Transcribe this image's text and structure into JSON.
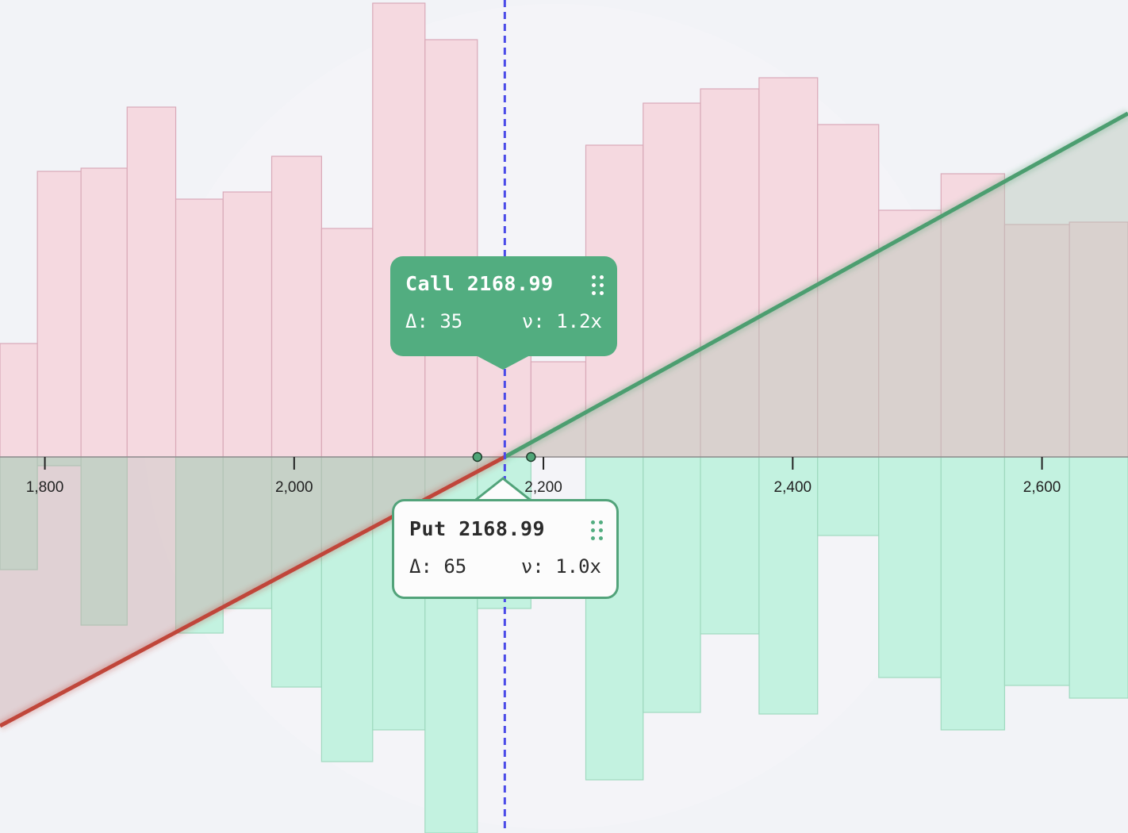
{
  "chart_data": {
    "type": "bar",
    "xlim": [
      1764,
      2669
    ],
    "ylim": [
      -474,
      576
    ],
    "grid": false,
    "x_ticks": [
      1800,
      2000,
      2200,
      2400,
      2600
    ],
    "x_tick_labels": [
      "1,800",
      "2,000",
      "2,200",
      "2,400",
      "2,600"
    ],
    "bins": [
      [
        1764,
        1794
      ],
      [
        1794,
        1829
      ],
      [
        1829,
        1866
      ],
      [
        1866,
        1905
      ],
      [
        1905,
        1943
      ],
      [
        1943,
        1982
      ],
      [
        1982,
        2022
      ],
      [
        2022,
        2063
      ],
      [
        2063,
        2105
      ],
      [
        2105,
        2147
      ],
      [
        2147,
        2190
      ],
      [
        2190,
        2234
      ],
      [
        2234,
        2280
      ],
      [
        2280,
        2326
      ],
      [
        2326,
        2373
      ],
      [
        2373,
        2420
      ],
      [
        2420,
        2469
      ],
      [
        2469,
        2519
      ],
      [
        2519,
        2570
      ],
      [
        2570,
        2622
      ],
      [
        2622,
        2669
      ]
    ],
    "series": [
      {
        "values": [
          143,
          360,
          364,
          441,
          325,
          334,
          379,
          288,
          572,
          526,
          130,
          120,
          393,
          446,
          464,
          478,
          419,
          311,
          357,
          293,
          296
        ],
        "color": "#f5d9e0"
      },
      {
        "values": [
          -142,
          -11,
          -212,
          0,
          -222,
          -191,
          -290,
          -384,
          -344,
          -480,
          -191,
          0,
          -407,
          -322,
          -223,
          -324,
          -99,
          -278,
          -344,
          -288,
          -304
        ],
        "color": "#c3f2e0"
      }
    ],
    "payoff_lines": [
      {
        "points": [
          [
            1764,
            -339
          ],
          [
            2169,
            0
          ]
        ],
        "color": "#c0463a"
      },
      {
        "points": [
          [
            2169,
            0
          ],
          [
            2669,
            433
          ]
        ],
        "color": "#4c9e70"
      }
    ],
    "strike": 2168.99,
    "strike_line_color": "#4a4ae8",
    "markers": [
      2147,
      2190
    ]
  },
  "tooltips": {
    "call": {
      "title": "Call 2168.99",
      "delta": "Δ: 35",
      "nu": "ν: 1.2x",
      "color": "#52ad80"
    },
    "put": {
      "title": "Put 2168.99",
      "delta": "Δ: 65",
      "nu": "ν: 1.0x",
      "color": "#52a37a"
    }
  }
}
